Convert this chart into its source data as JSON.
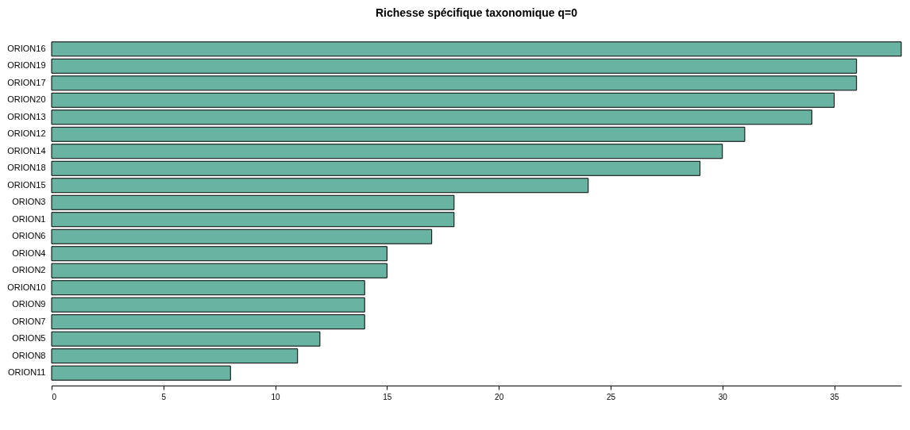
{
  "chart_data": {
    "type": "bar",
    "orientation": "horizontal",
    "title": "Richesse spécifique taxonomique q=0",
    "categories": [
      "ORION16",
      "ORION19",
      "ORION17",
      "ORION20",
      "ORION13",
      "ORION12",
      "ORION14",
      "ORION18",
      "ORION15",
      "ORION3",
      "ORION1",
      "ORION6",
      "ORION4",
      "ORION2",
      "ORION10",
      "ORION9",
      "ORION7",
      "ORION5",
      "ORION8",
      "ORION11"
    ],
    "values": [
      38,
      36,
      36,
      35,
      34,
      31,
      30,
      29,
      24,
      18,
      18,
      17,
      15,
      15,
      14,
      14,
      14,
      12,
      11,
      8
    ],
    "color": "#69b3a2",
    "xlim": [
      0,
      38
    ],
    "xticks": [
      0,
      5,
      10,
      15,
      20,
      25,
      30,
      35
    ],
    "grid": false
  }
}
